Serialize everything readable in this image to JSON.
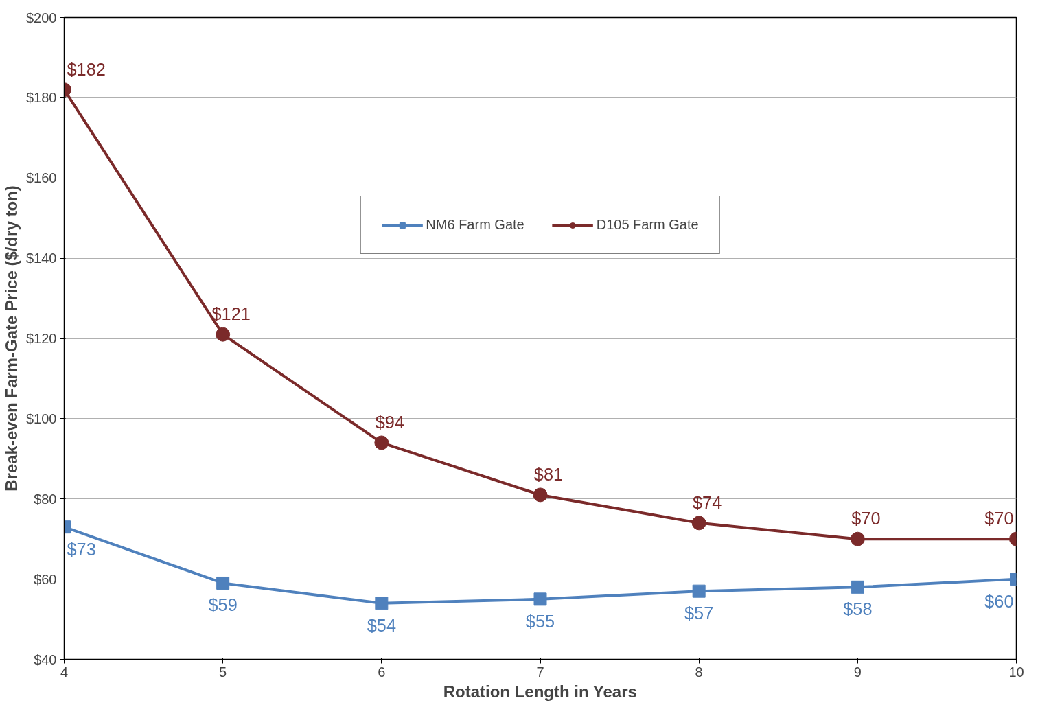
{
  "chart_data": {
    "type": "line",
    "xlabel": "Rotation Length in Years",
    "ylabel": "Break-even Farm-Gate Price ($/dry ton)",
    "x": [
      4,
      5,
      6,
      7,
      8,
      9,
      10
    ],
    "series": [
      {
        "name": "NM6 Farm Gate",
        "color": "#4f81bd",
        "marker": "square",
        "values": [
          73,
          59,
          54,
          55,
          57,
          58,
          60
        ],
        "value_labels": [
          "$73",
          "$59",
          "$54",
          "$55",
          "$57",
          "$58",
          "$60"
        ]
      },
      {
        "name": "D105 Farm Gate",
        "color": "#7b2a2a",
        "marker": "circle",
        "values": [
          182,
          121,
          94,
          81,
          74,
          70,
          70
        ],
        "value_labels": [
          "$182",
          "$121",
          "$94",
          "$81",
          "$74",
          "$70",
          "$70"
        ]
      }
    ],
    "xlim": [
      4,
      10
    ],
    "xticks": [
      4,
      5,
      6,
      7,
      8,
      9,
      10
    ],
    "ylim": [
      40,
      200
    ],
    "yticks": [
      {
        "value": 40,
        "label": "$40"
      },
      {
        "value": 60,
        "label": "$60"
      },
      {
        "value": 80,
        "label": "$80"
      },
      {
        "value": 100,
        "label": "$100"
      },
      {
        "value": 120,
        "label": "$120"
      },
      {
        "value": 140,
        "label": "$140"
      },
      {
        "value": 160,
        "label": "$160"
      },
      {
        "value": 180,
        "label": "$180"
      },
      {
        "value": 200,
        "label": "$200"
      }
    ],
    "grid": "y",
    "legend": "top",
    "line_style": "solid"
  }
}
